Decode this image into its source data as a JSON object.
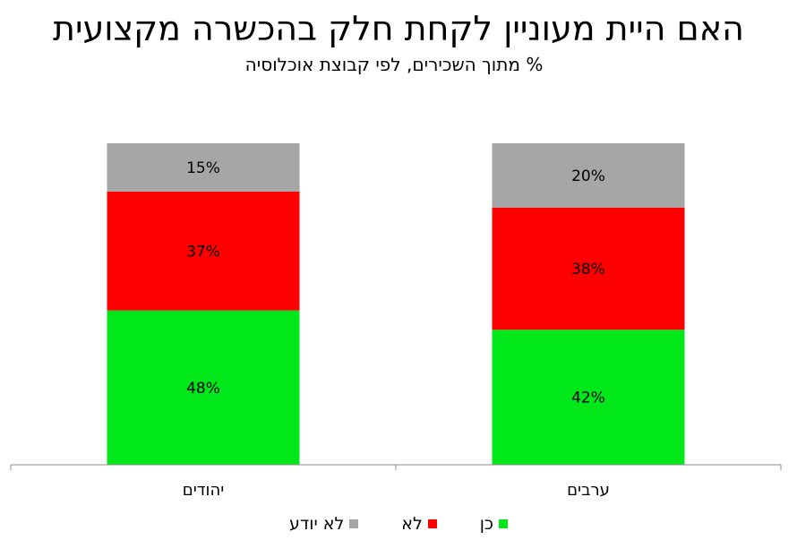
{
  "chart_data": {
    "type": "bar",
    "stacked": true,
    "title": "האם היית מעוניין לקחת חלק בהכשרה מקצועית",
    "subtitle": "% מתוך השכירים, לפי קבוצת אוכלוסיה",
    "categories": [
      "ערבים",
      "יהודים"
    ],
    "series": [
      {
        "name": "כן",
        "values": [
          42,
          48
        ],
        "labels": [
          "42%",
          "48%"
        ],
        "color": "#00e81a"
      },
      {
        "name": "לא",
        "values": [
          38,
          37
        ],
        "labels": [
          "38%",
          "37%"
        ],
        "color": "#ff0000"
      },
      {
        "name": "לא יודע",
        "values": [
          20,
          15
        ],
        "labels": [
          "20%",
          "15%"
        ],
        "color": "#a6a6a6"
      }
    ],
    "ylim": [
      0,
      100
    ],
    "grid": false,
    "legend_position": "bottom"
  }
}
